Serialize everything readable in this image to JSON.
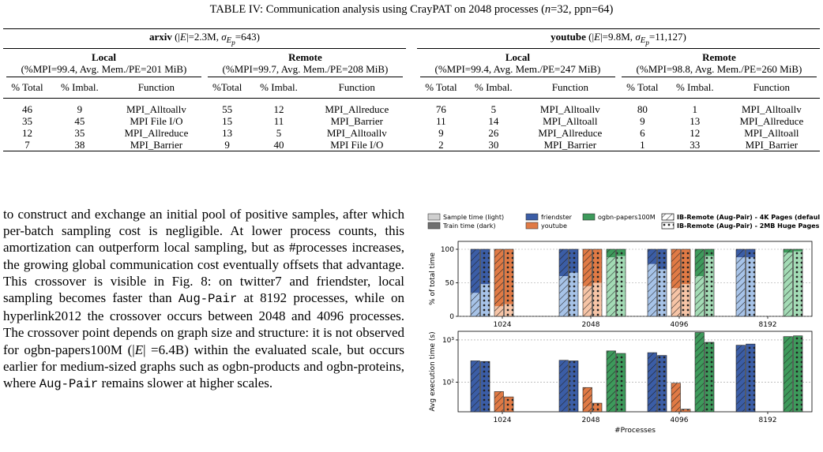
{
  "caption": "TABLE IV: Communication analysis using CrayPAT on 2048 processes (n=32, ppn=64)",
  "table": {
    "datasets": [
      {
        "name": "arxiv",
        "stats": "(|E|=2.3M, σ_{E_p}=643)",
        "groups": [
          {
            "title": "Local",
            "sub": "(%MPI=99.4, Avg. Mem./PE=201 MiB)"
          },
          {
            "title": "Remote",
            "sub": "(%MPI=99.7, Avg. Mem./PE=208 MiB)"
          }
        ]
      },
      {
        "name": "youtube",
        "stats": "(|E|=9.8M, σ_{E_p}=11,127)",
        "groups": [
          {
            "title": "Local",
            "sub": "(%MPI=99.4, Avg. Mem./PE=247 MiB)"
          },
          {
            "title": "Remote",
            "sub": "(%MPI=98.8, Avg. Mem./PE=260 MiB)"
          }
        ]
      }
    ],
    "col_headers": [
      "% Total",
      "% Imbal.",
      "Function",
      "%Total",
      "% Imbal.",
      "Function",
      "% Total",
      "% Imbal.",
      "Function",
      "% Total",
      "% Imbal.",
      "Function"
    ],
    "rows": [
      [
        "46",
        "9",
        "MPI_Alltoallv",
        "55",
        "12",
        "MPI_Allreduce",
        "76",
        "5",
        "MPI_Alltoallv",
        "80",
        "1",
        "MPI_Alltoallv"
      ],
      [
        "35",
        "45",
        "MPI File I/O",
        "15",
        "11",
        "MPI_Barrier",
        "11",
        "14",
        "MPI_Alltoall",
        "9",
        "13",
        "MPI_Allreduce"
      ],
      [
        "12",
        "35",
        "MPI_Allreduce",
        "13",
        "5",
        "MPI_Alltoallv",
        "9",
        "26",
        "MPI_Allreduce",
        "6",
        "12",
        "MPI_Alltoall"
      ],
      [
        "7",
        "38",
        "MPI_Barrier",
        "9",
        "40",
        "MPI File I/O",
        "2",
        "30",
        "MPI_Barrier",
        "1",
        "33",
        "MPI_Barrier"
      ]
    ]
  },
  "paragraph": [
    {
      "t": "to construct and exchange an initial pool of positive samples, after which per-batch sampling cost is negligible. At lower process counts, this amortization can outperform local sampling, but as #processes increases, the growing global communication cost eventually offsets that advantage. This crossover is visible in Fig. 8: on twitter7 and friendster, local sampling becomes faster than "
    },
    {
      "t": "Aug-Pair",
      "mono": true
    },
    {
      "t": " at 8192 processes, while on hyperlink2012 the crossover occurs between 2048 and 4096 processes. The crossover point depends on graph size and structure: it is not observed for ogbn-papers100M (|E| =6.4B) within the evaluated scale, but occurs earlier for medium-sized graphs such as ogbn-products and ogbn-proteins, where "
    },
    {
      "t": "Aug-Pair",
      "mono": true
    },
    {
      "t": " remains slower at higher scales."
    }
  ],
  "chart_data": [
    {
      "type": "bar",
      "ylabel": "% of total time",
      "ylim": [
        0,
        100
      ],
      "yticks": [
        0,
        50,
        100
      ],
      "categories": [
        "1024",
        "2048",
        "4096",
        "8192"
      ],
      "series": [
        {
          "name": "friendster",
          "variant": "IB-Remote (Aug-Pair) - 4K Pages (default)",
          "sample_pct": [
            35,
            60,
            78,
            88
          ]
        },
        {
          "name": "friendster",
          "variant": "IB-Remote (Aug-Pair) - 2MB Huge Pages",
          "sample_pct": [
            48,
            65,
            70,
            88
          ]
        },
        {
          "name": "youtube",
          "variant": "IB-Remote (Aug-Pair) - 4K Pages (default)",
          "sample_pct": [
            15,
            45,
            42,
            null
          ]
        },
        {
          "name": "youtube",
          "variant": "IB-Remote (Aug-Pair) - 2MB Huge Pages",
          "sample_pct": [
            18,
            50,
            48,
            null
          ]
        },
        {
          "name": "ogbn-papers100M",
          "variant": "IB-Remote (Aug-Pair) - 4K Pages (default)",
          "sample_pct": [
            null,
            88,
            60,
            95
          ]
        },
        {
          "name": "ogbn-papers100M",
          "variant": "IB-Remote (Aug-Pair) - 2MB Huge Pages",
          "sample_pct": [
            null,
            90,
            90,
            97
          ]
        }
      ]
    },
    {
      "type": "bar",
      "ylabel": "Avg execution time (s)",
      "xlabel": "#Processes",
      "yscale": "log",
      "ylim": [
        20,
        1600
      ],
      "yticks": [
        "10²",
        "10³"
      ],
      "categories": [
        "1024",
        "2048",
        "4096",
        "8192"
      ],
      "series": [
        {
          "name": "friendster",
          "variant": "IB-Remote (Aug-Pair) - 4K Pages (default)",
          "values": [
            320,
            330,
            500,
            750
          ]
        },
        {
          "name": "friendster",
          "variant": "IB-Remote (Aug-Pair) - 2MB Huge Pages",
          "values": [
            310,
            320,
            430,
            800
          ]
        },
        {
          "name": "youtube",
          "variant": "IB-Remote (Aug-Pair) - 4K Pages (default)",
          "values": [
            60,
            75,
            95,
            null
          ]
        },
        {
          "name": "youtube",
          "variant": "IB-Remote (Aug-Pair) - 2MB Huge Pages",
          "values": [
            45,
            32,
            23,
            null
          ]
        },
        {
          "name": "ogbn-papers100M",
          "variant": "IB-Remote (Aug-Pair) - 4K Pages (default)",
          "values": [
            null,
            550,
            1500,
            1200
          ]
        },
        {
          "name": "ogbn-papers100M",
          "variant": "IB-Remote (Aug-Pair) - 2MB Huge Pages",
          "values": [
            null,
            480,
            880,
            1250
          ]
        }
      ]
    }
  ],
  "figure_legend": [
    {
      "label": "Sample time (light)",
      "swatch": "light-gray"
    },
    {
      "label": "Train time (dark)",
      "swatch": "dark-gray"
    },
    {
      "label": "friendster",
      "swatch": "friendster"
    },
    {
      "label": "youtube",
      "swatch": "youtube"
    },
    {
      "label": "ogbn-papers100M",
      "swatch": "ogbn"
    },
    {
      "label": "IB-Remote (Aug-Pair) - 4K Pages (default)",
      "swatch": "hatch-4k",
      "bold": true
    },
    {
      "label": "IB-Remote (Aug-Pair) - 2MB Huge Pages",
      "swatch": "hatch-2mb",
      "bold": true
    }
  ],
  "colors": {
    "friendster_dark": "#3b5da6",
    "friendster_light": "#a7c3e8",
    "youtube_dark": "#e07a45",
    "youtube_light": "#f6c4a6",
    "ogbn_dark": "#3d9a5b",
    "ogbn_light": "#a3dbb5",
    "legend_light_gray": "#cfcfcf",
    "legend_dark_gray": "#6f6f6f"
  }
}
